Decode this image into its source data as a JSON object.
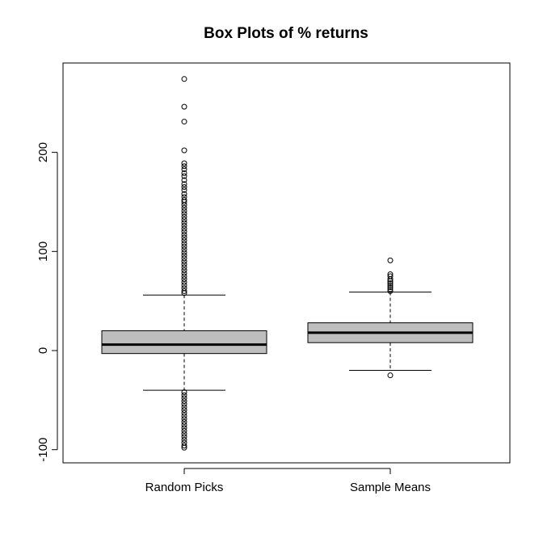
{
  "chart_data": {
    "type": "box",
    "title": "Box Plots of % returns",
    "xlabel": "",
    "ylabel": "",
    "ylim": [
      -112,
      290
    ],
    "y_ticks": [
      -100,
      0,
      100,
      200
    ],
    "y_tick_labels": [
      "-100",
      "0",
      "100",
      "200"
    ],
    "categories": [
      "Random Picks",
      "Sample Means"
    ],
    "grid": false,
    "legend": "none",
    "box_fill": "#bebebe",
    "boxes": [
      {
        "name": "Random Picks",
        "whisker_low": -40,
        "q1": -3,
        "median": 6,
        "q3": 20,
        "whisker_high": 56,
        "outliers": [
          274,
          246,
          231,
          202,
          189,
          186,
          183,
          179,
          176,
          172,
          168,
          165,
          162,
          158,
          155,
          152,
          150,
          147,
          144,
          141,
          138,
          135,
          132,
          129,
          126,
          123,
          120,
          117,
          114,
          111,
          108,
          105,
          102,
          99,
          96,
          93,
          90,
          87,
          84,
          81,
          78,
          75,
          72,
          69,
          66,
          63,
          60,
          58,
          -42,
          -45,
          -48,
          -51,
          -54,
          -57,
          -60,
          -63,
          -66,
          -69,
          -72,
          -75,
          -78,
          -81,
          -84,
          -87,
          -90,
          -93,
          -96,
          -98
        ]
      },
      {
        "name": "Sample Means",
        "whisker_low": -20,
        "q1": 8,
        "median": 18,
        "q3": 28,
        "whisker_high": 59,
        "outliers": [
          91,
          77,
          75,
          72,
          70,
          68,
          66,
          64,
          62,
          60,
          -25
        ]
      }
    ]
  }
}
